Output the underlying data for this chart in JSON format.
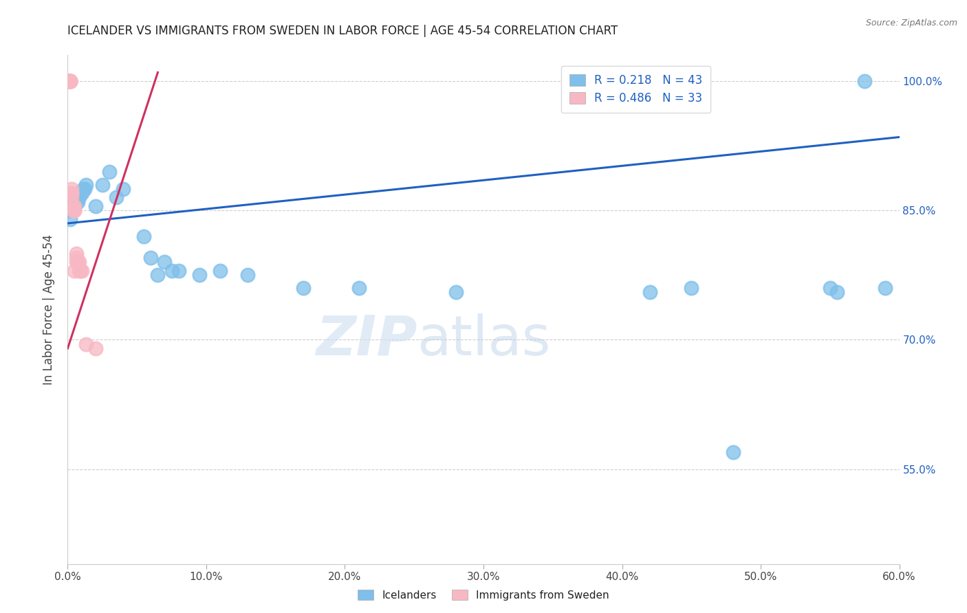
{
  "title": "ICELANDER VS IMMIGRANTS FROM SWEDEN IN LABOR FORCE | AGE 45-54 CORRELATION CHART",
  "source": "Source: ZipAtlas.com",
  "ylabel": "In Labor Force | Age 45-54",
  "legend_label_blue": "Icelanders",
  "legend_label_pink": "Immigrants from Sweden",
  "R_blue": 0.218,
  "N_blue": 43,
  "R_pink": 0.486,
  "N_pink": 33,
  "xlim": [
    0.0,
    0.6
  ],
  "ylim": [
    0.44,
    1.03
  ],
  "xticks": [
    0.0,
    0.1,
    0.2,
    0.3,
    0.4,
    0.5,
    0.6
  ],
  "yticks": [
    0.55,
    0.7,
    0.85,
    1.0
  ],
  "ytick_labels": [
    "55.0%",
    "70.0%",
    "85.0%",
    "100.0%"
  ],
  "xtick_labels": [
    "0.0%",
    "10.0%",
    "20.0%",
    "30.0%",
    "40.0%",
    "50.0%",
    "60.0%"
  ],
  "blue_color": "#7fbfea",
  "pink_color": "#f7b8c4",
  "trend_blue": "#2060c0",
  "trend_pink": "#d03060",
  "watermark_zip": "ZIP",
  "watermark_atlas": "atlas",
  "blue_trend_x0": 0.0,
  "blue_trend_y0": 0.835,
  "blue_trend_x1": 0.6,
  "blue_trend_y1": 0.935,
  "pink_trend_x0": 0.0,
  "pink_trend_y0": 0.69,
  "pink_trend_x1": 0.065,
  "pink_trend_y1": 1.01,
  "blue_x": [
    0.001,
    0.001,
    0.001,
    0.002,
    0.002,
    0.003,
    0.003,
    0.004,
    0.004,
    0.005,
    0.005,
    0.006,
    0.007,
    0.008,
    0.009,
    0.01,
    0.011,
    0.012,
    0.013,
    0.02,
    0.025,
    0.03,
    0.035,
    0.04,
    0.055,
    0.06,
    0.065,
    0.07,
    0.075,
    0.08,
    0.095,
    0.11,
    0.13,
    0.17,
    0.21,
    0.28,
    0.42,
    0.45,
    0.48,
    0.55,
    0.555,
    0.575,
    0.59
  ],
  "blue_y": [
    0.855,
    0.86,
    0.865,
    0.84,
    0.85,
    0.855,
    0.855,
    0.86,
    0.855,
    0.86,
    0.855,
    0.86,
    0.86,
    0.865,
    0.87,
    0.87,
    0.875,
    0.875,
    0.88,
    0.855,
    0.88,
    0.895,
    0.865,
    0.875,
    0.82,
    0.795,
    0.775,
    0.79,
    0.78,
    0.78,
    0.775,
    0.78,
    0.775,
    0.76,
    0.76,
    0.755,
    0.755,
    0.76,
    0.57,
    0.76,
    0.755,
    1.0,
    0.76
  ],
  "pink_x": [
    0.001,
    0.001,
    0.001,
    0.001,
    0.001,
    0.001,
    0.001,
    0.001,
    0.002,
    0.002,
    0.002,
    0.002,
    0.002,
    0.003,
    0.003,
    0.003,
    0.003,
    0.004,
    0.004,
    0.005,
    0.005,
    0.005,
    0.005,
    0.006,
    0.006,
    0.006,
    0.007,
    0.008,
    0.008,
    0.009,
    0.01,
    0.013,
    0.02
  ],
  "pink_y": [
    1.0,
    1.0,
    1.0,
    1.0,
    1.0,
    1.0,
    1.0,
    1.0,
    1.0,
    1.0,
    1.0,
    1.0,
    1.0,
    0.87,
    0.865,
    0.875,
    0.87,
    0.85,
    0.855,
    0.85,
    0.855,
    0.85,
    0.78,
    0.79,
    0.795,
    0.8,
    0.79,
    0.79,
    0.78,
    0.78,
    0.78,
    0.695,
    0.69
  ]
}
